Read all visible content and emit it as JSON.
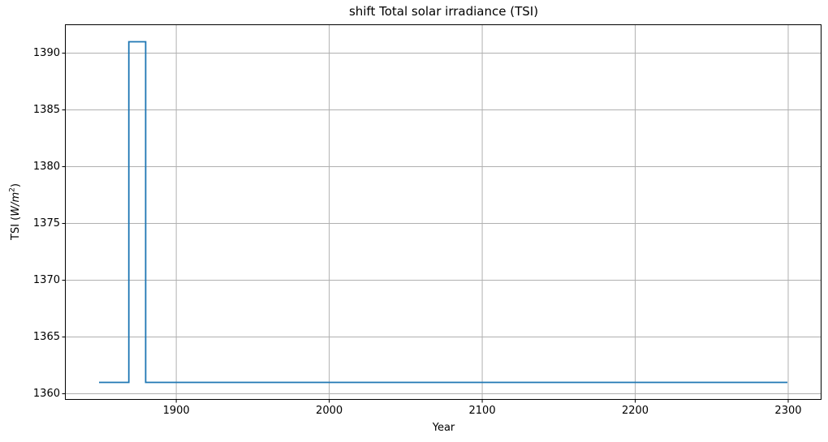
{
  "figure": {
    "title": "shift Total solar irradiance (TSI)",
    "xlabel": "Year",
    "ylabel": {
      "prefix": "TSI (",
      "unit": "W/m",
      "exponent": "2",
      "suffix": ")"
    }
  },
  "chart_data": {
    "type": "line",
    "title": "shift Total solar irradiance (TSI)",
    "xlabel": "Year",
    "ylabel": "TSI (W/m^2)",
    "xlim": [
      1827.5,
      2321.5
    ],
    "ylim": [
      1359.5,
      1392.5
    ],
    "xticks": [
      1900,
      2000,
      2100,
      2200,
      2300
    ],
    "yticks": [
      1360,
      1365,
      1370,
      1375,
      1380,
      1385,
      1390
    ],
    "grid": true,
    "grid_color": "#b0b0b0",
    "spine_color": "#000000",
    "background_color": "#ffffff",
    "legend": null,
    "series": [
      {
        "name": "TSI",
        "color": "#1f77b4",
        "points": [
          [
            1850,
            1361
          ],
          [
            1869,
            1361
          ],
          [
            1869,
            1391
          ],
          [
            1880,
            1391
          ],
          [
            1880,
            1361
          ],
          [
            2299,
            1361
          ]
        ]
      }
    ],
    "key_values": {
      "baseline_tsi_w_m2": 1361,
      "spike_tsi_w_m2": 1391,
      "spike_start_year": 1869,
      "spike_end_year": 1880,
      "series_start_year": 1850,
      "series_end_year": 2299
    }
  }
}
